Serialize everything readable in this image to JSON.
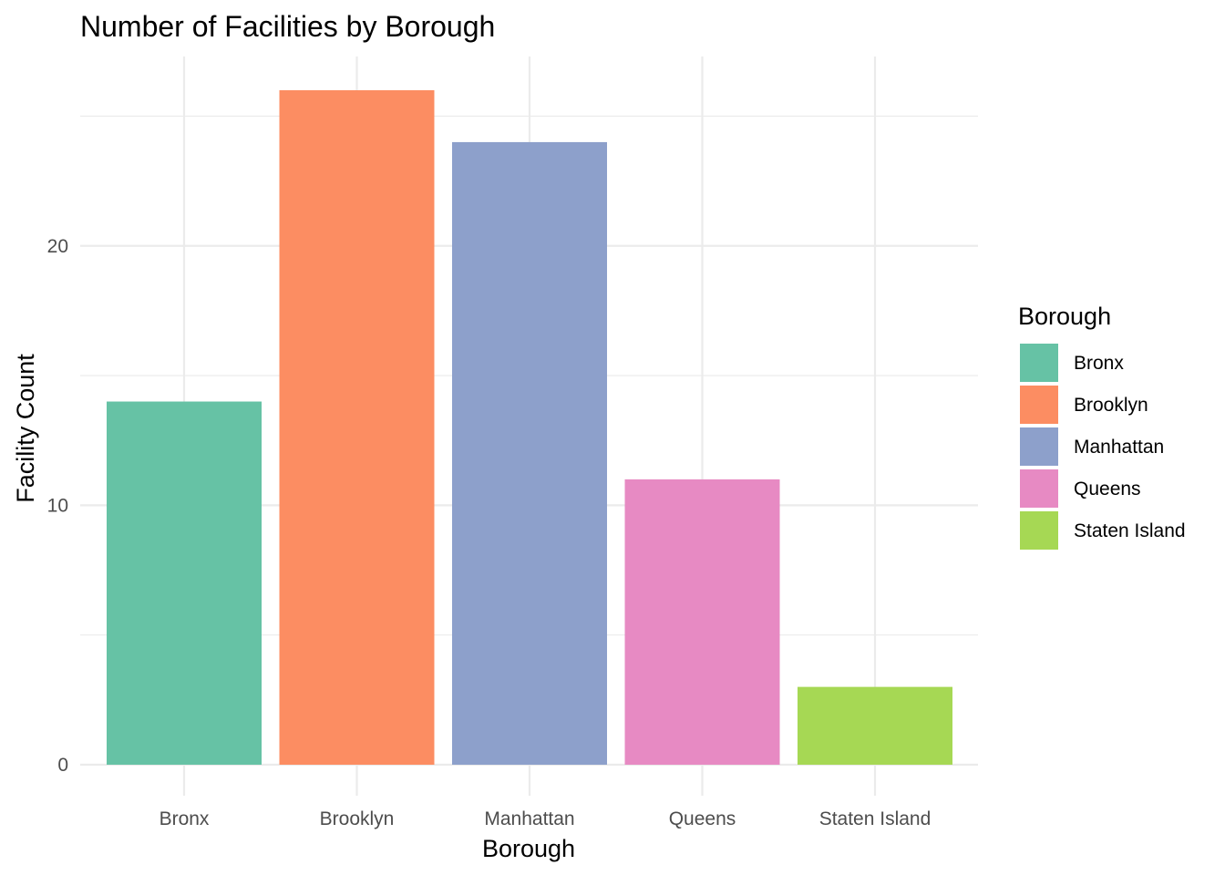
{
  "chart_data": {
    "type": "bar",
    "title": "Number of Facilities by Borough",
    "xlabel": "Borough",
    "ylabel": "Facility Count",
    "categories": [
      "Bronx",
      "Brooklyn",
      "Manhattan",
      "Queens",
      "Staten Island"
    ],
    "values": [
      14,
      26,
      24,
      11,
      3
    ],
    "colors": [
      "#66C2A5",
      "#FC8D62",
      "#8DA0CB",
      "#E78AC3",
      "#A6D854"
    ],
    "ylim": [
      0,
      27.3
    ],
    "yticks": [
      0,
      10,
      20
    ],
    "y_minor_ticks": [
      5,
      15,
      25
    ],
    "grid": true,
    "legend": {
      "title": "Borough",
      "position": "right",
      "entries": [
        "Bronx",
        "Brooklyn",
        "Manhattan",
        "Queens",
        "Staten Island"
      ]
    }
  }
}
